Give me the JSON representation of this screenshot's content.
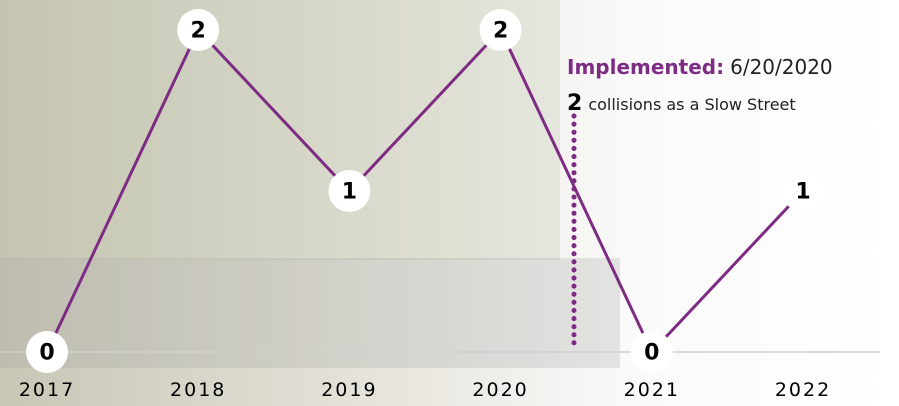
{
  "chart_data": {
    "type": "line",
    "categories": [
      "2017",
      "2018",
      "2019",
      "2020",
      "2021",
      "2022"
    ],
    "values": [
      0,
      2,
      1,
      2,
      0,
      1
    ],
    "color": "#7e2b84",
    "ylim": [
      0,
      2
    ],
    "annotation": {
      "label": "Implemented:",
      "date": "6/20/2020",
      "count": 2,
      "text": "collisions as a Slow Street"
    }
  }
}
